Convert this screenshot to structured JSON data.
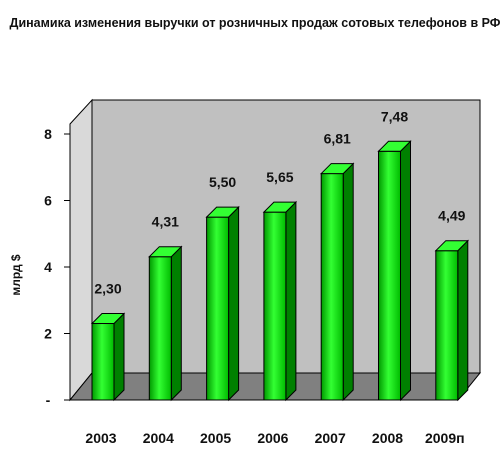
{
  "chart_data": {
    "type": "bar",
    "title": "Динамика изменения выручки от розничных продаж сотовых телефонов в РФ",
    "ylabel": "млрд $",
    "categories": [
      "2003",
      "2004",
      "2005",
      "2006",
      "2007",
      "2008",
      "2009п"
    ],
    "values": [
      2.3,
      4.31,
      5.5,
      5.65,
      6.81,
      7.48,
      4.49
    ],
    "value_labels": [
      "2,30",
      "4,31",
      "5,50",
      "5,65",
      "6,81",
      "7,48",
      "4,49"
    ],
    "ylim": [
      0,
      8
    ],
    "yticks": [
      0,
      2,
      4,
      6,
      8
    ],
    "ytick_labels": [
      "-",
      "2",
      "4",
      "6",
      "8"
    ],
    "grid": false,
    "legend": "none",
    "style": "3d-columns",
    "colors": {
      "bar_front": "#00e000",
      "bar_side": "#008000",
      "bar_top": "#33ff33",
      "back_wall": "#c0c0c0",
      "floor": "#808080"
    }
  }
}
